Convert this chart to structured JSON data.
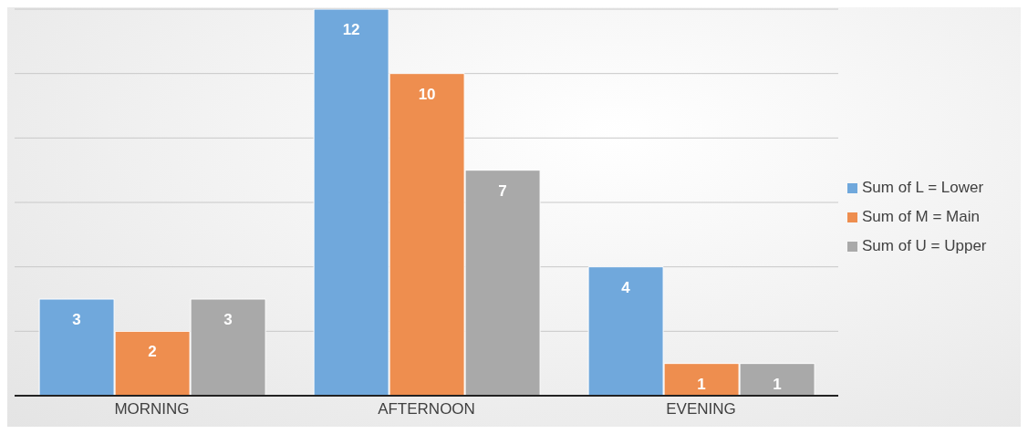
{
  "chart_data": {
    "type": "bar",
    "categories": [
      "MORNING",
      "AFTERNOON",
      "EVENING"
    ],
    "series": [
      {
        "name": "Sum of L = Lower",
        "color": "#70a8dc",
        "values": [
          3,
          12,
          4
        ]
      },
      {
        "name": "Sum of M = Main",
        "color": "#ee8e4f",
        "values": [
          2,
          10,
          1
        ]
      },
      {
        "name": "Sum of U = Upper",
        "color": "#a9a9a9",
        "values": [
          3,
          7,
          1
        ]
      }
    ],
    "grid": "y",
    "legend": "right",
    "tick_labels": "x",
    "data_labels": true
  }
}
